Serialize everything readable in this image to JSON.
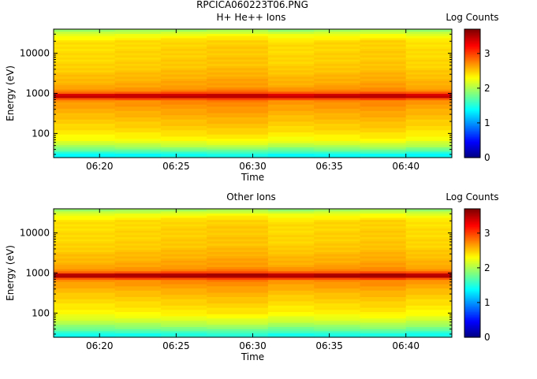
{
  "figure_title": "RPCICA060223T06.PNG",
  "chart_data": [
    {
      "type": "heatmap",
      "title": "H+ He++ Ions",
      "xlabel": "Time",
      "ylabel": "Energy (eV)",
      "x_ticks": [
        "06:20",
        "06:25",
        "06:30",
        "06:35",
        "06:40"
      ],
      "x_range": [
        "06:17",
        "06:43"
      ],
      "y_scale": "log",
      "y_ticks": [
        "100",
        "1000",
        "10000"
      ],
      "y_range": [
        25,
        40000
      ],
      "grid": false,
      "colorbar": {
        "label": "Log Counts",
        "ticks": [
          "0",
          "1",
          "2",
          "3"
        ],
        "range": [
          0,
          3.7
        ]
      },
      "time_columns": [
        "06:17",
        "06:21",
        "06:24",
        "06:27",
        "06:31",
        "06:34",
        "06:37",
        "06:40"
      ],
      "profile": [
        {
          "energy": 25,
          "log_counts": 1.6
        },
        {
          "energy": 28,
          "log_counts": 1.3
        },
        {
          "energy": 32,
          "log_counts": 1.5
        },
        {
          "energy": 38,
          "log_counts": 1.75
        },
        {
          "energy": 50,
          "log_counts": 2.05
        },
        {
          "energy": 70,
          "log_counts": 2.3
        },
        {
          "energy": 120,
          "log_counts": 2.45
        },
        {
          "energy": 300,
          "log_counts": 2.6
        },
        {
          "energy": 700,
          "log_counts": 2.75
        },
        {
          "energy": 820,
          "log_counts": 3.45
        },
        {
          "energy": 880,
          "log_counts": 3.55
        },
        {
          "energy": 950,
          "log_counts": 3.4
        },
        {
          "energy": 1100,
          "log_counts": 2.8
        },
        {
          "energy": 1500,
          "log_counts": 2.65
        },
        {
          "energy": 5000,
          "log_counts": 2.5
        },
        {
          "energy": 20000,
          "log_counts": 2.45
        },
        {
          "energy": 30000,
          "log_counts": 2.25
        },
        {
          "energy": 40000,
          "log_counts": 1.9
        }
      ]
    },
    {
      "type": "heatmap",
      "title": "Other Ions",
      "xlabel": "Time",
      "ylabel": "Energy (eV)",
      "x_ticks": [
        "06:20",
        "06:25",
        "06:30",
        "06:35",
        "06:40"
      ],
      "x_range": [
        "06:17",
        "06:43"
      ],
      "y_scale": "log",
      "y_ticks": [
        "100",
        "1000",
        "10000"
      ],
      "y_range": [
        25,
        40000
      ],
      "grid": false,
      "colorbar": {
        "label": "Log Counts",
        "ticks": [
          "0",
          "1",
          "2",
          "3"
        ],
        "range": [
          0,
          3.7
        ]
      },
      "time_columns": [
        "06:17",
        "06:21",
        "06:24",
        "06:27",
        "06:31",
        "06:34",
        "06:37",
        "06:40"
      ],
      "profile": [
        {
          "energy": 25,
          "log_counts": 1.6
        },
        {
          "energy": 28,
          "log_counts": 1.4
        },
        {
          "energy": 32,
          "log_counts": 1.55
        },
        {
          "energy": 40,
          "log_counts": 1.8
        },
        {
          "energy": 60,
          "log_counts": 2.1
        },
        {
          "energy": 100,
          "log_counts": 2.35
        },
        {
          "energy": 300,
          "log_counts": 2.55
        },
        {
          "energy": 700,
          "log_counts": 2.75
        },
        {
          "energy": 820,
          "log_counts": 3.5
        },
        {
          "energy": 880,
          "log_counts": 3.7
        },
        {
          "energy": 950,
          "log_counts": 3.5
        },
        {
          "energy": 1100,
          "log_counts": 2.8
        },
        {
          "energy": 1500,
          "log_counts": 2.65
        },
        {
          "energy": 5000,
          "log_counts": 2.5
        },
        {
          "energy": 20000,
          "log_counts": 2.45
        },
        {
          "energy": 30000,
          "log_counts": 2.25
        },
        {
          "energy": 40000,
          "log_counts": 1.9
        }
      ]
    }
  ]
}
